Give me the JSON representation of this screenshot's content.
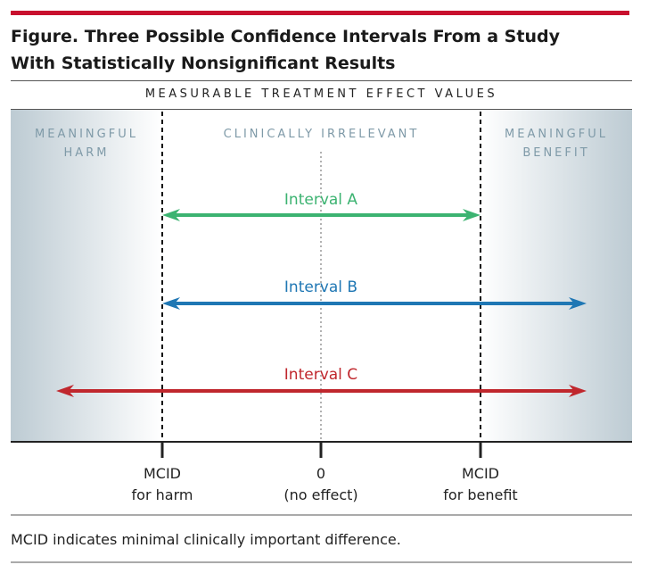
{
  "figure": {
    "title_line1": "Figure. Three Possible Confidence Intervals From a Study",
    "title_line2": "With Statistically Nonsignificant Results",
    "band_label": "MEASURABLE TREATMENT EFFECT VALUES",
    "accent_color": "#c8102e"
  },
  "zones": {
    "harm": [
      "MEANINGFUL",
      "HARM"
    ],
    "irrelevant": "CLINICALLY IRRELEVANT",
    "benefit": [
      "MEANINGFUL",
      "BENEFIT"
    ],
    "zone_color": "#7f9aa8"
  },
  "intervals": [
    {
      "label": "Interval A",
      "color": "#3cb371",
      "left_arrow": true,
      "right_arrow": true
    },
    {
      "label": "Interval B",
      "color": "#1f77b4",
      "left_arrow": true,
      "right_arrow": true
    },
    {
      "label": "Interval C",
      "color": "#c0272d",
      "left_arrow": true,
      "right_arrow": true
    }
  ],
  "axis": {
    "mcid_harm": [
      "MCID",
      "for harm"
    ],
    "zero": [
      "0",
      "(no effect)"
    ],
    "mcid_benefit": [
      "MCID",
      "for benefit"
    ]
  },
  "footnote": "MCID indicates minimal clinically important difference."
}
